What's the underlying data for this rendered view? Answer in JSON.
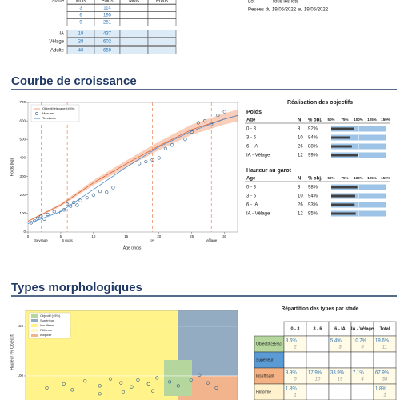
{
  "header_table": {
    "columns": [
      "Stade",
      "Mois",
      "Poids",
      "Mois",
      "Poids"
    ],
    "rows": [
      [
        null,
        3,
        114
      ],
      [
        null,
        6,
        195
      ],
      [
        null,
        9,
        251
      ],
      [
        "IA",
        19,
        437
      ],
      [
        "Vêlage",
        28,
        602
      ],
      [
        "Adulte",
        40,
        650
      ]
    ]
  },
  "lot": {
    "label": "Lot",
    "value": "Tous les lots"
  },
  "pesees": {
    "label": "Pesées du",
    "value": "19/05/2022 au 19/05/2022"
  },
  "growth": {
    "title": "Courbe de croissance",
    "chart": {
      "type": "line",
      "ylabel": "Poids (kg)",
      "xlabel": "Âge (mois)",
      "xlim": [
        0,
        32
      ],
      "ylim": [
        0,
        700
      ],
      "xticks": [
        0,
        5,
        10,
        15,
        20,
        25,
        30
      ],
      "yticks": [
        0,
        100,
        200,
        300,
        400,
        500,
        600,
        700
      ],
      "milestones": [
        {
          "label": "Sevrage",
          "value": 2
        },
        {
          "label": "6 mois",
          "value": 6
        },
        {
          "label": "IA",
          "value": 19
        },
        {
          "label": "Vêlage",
          "value": 28
        }
      ],
      "objective": {
        "name": "Objectif élevage (±5%)",
        "color": "#f4a582",
        "x": [
          0,
          5,
          10,
          15,
          20,
          25,
          30,
          32
        ],
        "y": [
          58,
          146,
          266,
          368,
          465,
          553,
          611,
          629
        ]
      },
      "measures": {
        "name": "Mesures",
        "color": "#2f5f8a",
        "x": [
          0.5,
          1,
          1.5,
          2,
          2.5,
          3,
          4,
          5,
          5.5,
          6,
          6.5,
          7,
          7.5,
          8,
          9,
          10,
          11,
          12,
          13,
          17,
          18,
          19,
          20,
          21,
          22,
          24,
          25,
          26,
          27,
          28,
          29,
          30
        ],
        "y": [
          50,
          60,
          75,
          85,
          70,
          95,
          110,
          105,
          120,
          150,
          140,
          160,
          145,
          170,
          185,
          200,
          220,
          215,
          240,
          370,
          380,
          390,
          400,
          450,
          470,
          500,
          540,
          590,
          600,
          580,
          630,
          650
        ]
      },
      "tendance": {
        "name": "Tendance",
        "color": "#4a90d9",
        "x": [
          0,
          5,
          10,
          15,
          20,
          25,
          30,
          32
        ],
        "y": [
          45,
          110,
          230,
          350,
          460,
          545,
          610,
          630
        ]
      }
    }
  },
  "objectives": {
    "title": "Réalisation des objectifs",
    "columns": [
      "Age",
      "N",
      "% obj."
    ],
    "scale": [
      {
        "value": 50,
        "label": "50%"
      },
      {
        "value": 75,
        "label": "75%"
      },
      {
        "value": 100,
        "label": "100%"
      },
      {
        "value": 125,
        "label": "125%"
      },
      {
        "value": 150,
        "label": "150%"
      }
    ],
    "groups": [
      {
        "name": "Poids",
        "rows": [
          {
            "age": "0 - 3",
            "n": 8,
            "pct": {
              "value": 92,
              "label": "92%"
            }
          },
          {
            "age": "3 - 6",
            "n": 10,
            "pct": {
              "value": 84,
              "label": "84%"
            }
          },
          {
            "age": "6 - IA",
            "n": 26,
            "pct": {
              "value": 88,
              "label": "88%"
            }
          },
          {
            "age": "IA - Vêlage",
            "n": 12,
            "pct": {
              "value": 99,
              "label": "99%"
            }
          }
        ]
      },
      {
        "name": "Hauteur au garot",
        "rows": [
          {
            "age": "0 - 3",
            "n": 8,
            "pct": {
              "value": 98,
              "label": "98%"
            }
          },
          {
            "age": "3 - 6",
            "n": 10,
            "pct": {
              "value": 94,
              "label": "94%"
            }
          },
          {
            "age": "6 - IA",
            "n": 26,
            "pct": {
              "value": 93,
              "label": "93%"
            }
          },
          {
            "age": "IA - Vêlage",
            "n": 12,
            "pct": {
              "value": 95,
              "label": "95%"
            }
          }
        ]
      }
    ]
  },
  "morph": {
    "title": "Types morphologiques",
    "chart": {
      "type": "scatter",
      "ylabel": "Hauteur (% Objectif)",
      "xlim": [
        50,
        150
      ],
      "ylim": [
        75,
        166
      ],
      "yticks": [
        100,
        150
      ],
      "legend": [
        {
          "name": "Objectif (±5%)",
          "color": "#b5d69c"
        },
        {
          "name": "Supérieur",
          "color": "#93acc2"
        },
        {
          "name": "Insuffisant",
          "color": "#fff38a"
        },
        {
          "name": "Filiforme",
          "color": "#fff9c8"
        },
        {
          "name": "Adiposé",
          "color": "#f2b48c"
        }
      ],
      "points": {
        "x": [
          60,
          68,
          72,
          78,
          85,
          90,
          95,
          100,
          103,
          108,
          112,
          118,
          122,
          128,
          132,
          136,
          140,
          85,
          96,
          110
        ],
        "y": [
          88,
          92,
          86,
          95,
          90,
          97,
          93,
          89,
          96,
          92,
          98,
          94,
          90,
          96,
          101,
          93,
          88,
          82,
          84,
          85
        ]
      }
    },
    "table": {
      "title": "Répartition des types par stade",
      "columns": [
        "0 - 3",
        "3 - 6",
        "6 - IA",
        "IA - Vêlage",
        "Total"
      ],
      "rows": [
        {
          "name": "Objectif (±5%)",
          "color": "#b5d69c",
          "pct": [
            "3.6%",
            null,
            "5.4%",
            "10.7%",
            "19.6%"
          ],
          "n": [
            2,
            null,
            3,
            6,
            11
          ]
        },
        {
          "name": "Supérieur",
          "color": "#5b9bd5",
          "pct": [
            null,
            null,
            null,
            null,
            null
          ],
          "n": [
            null,
            null,
            null,
            null,
            null
          ]
        },
        {
          "name": "Insuffisant",
          "color": "#f4b183",
          "pct": [
            "8.9%",
            "17.9%",
            "33.9%",
            "7.1%",
            "67.9%"
          ],
          "n": [
            5,
            10,
            19,
            4,
            38
          ]
        },
        {
          "name": "Filiforme",
          "color": "#fff2cc",
          "pct": [
            "1.8%",
            null,
            null,
            null,
            "1.8%"
          ],
          "n": [
            1,
            null,
            null,
            null,
            1
          ]
        }
      ]
    }
  }
}
